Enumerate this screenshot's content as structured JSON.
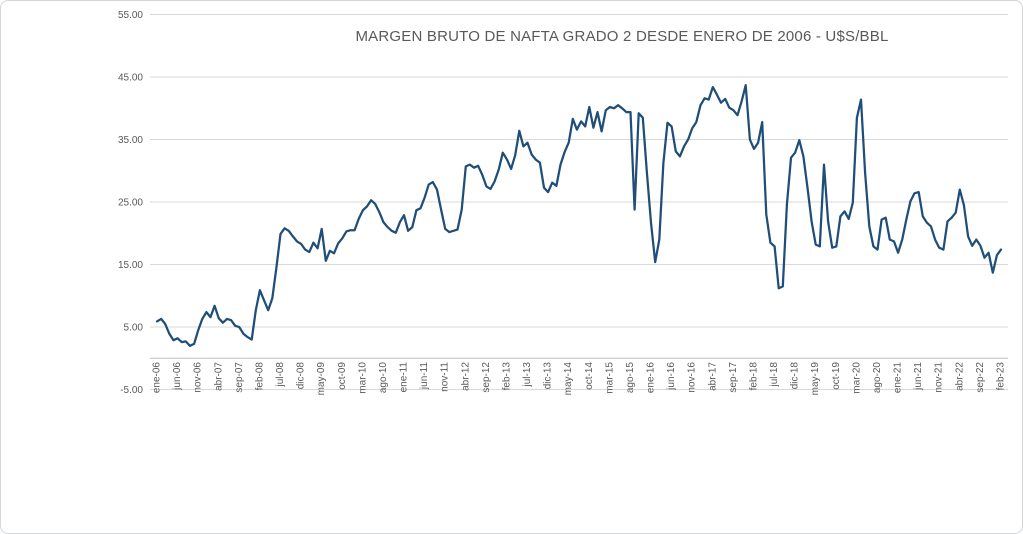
{
  "window": {
    "background_color": "#ffffff",
    "border_color": "#d4d7d9"
  },
  "chart_data": {
    "type": "line",
    "title": "MARGEN BRUTO DE NAFTA GRADO 2 DESDE ENERO DE 2006 - U$S/BBL",
    "xlabel": "",
    "ylabel": "",
    "ylim": [
      -5,
      55
    ],
    "grid": true,
    "legend_position": "none",
    "line_color": "#1f4e79",
    "grid_color": "#d9d9d9",
    "axis_line_color": "#bfbfbf",
    "label_color": "#595959",
    "y_ticks": [
      {
        "value": 55,
        "label": "55.00"
      },
      {
        "value": 45,
        "label": "45.00"
      },
      {
        "value": 35,
        "label": "35.00"
      },
      {
        "value": 25,
        "label": "25.00"
      },
      {
        "value": 15,
        "label": "15.00"
      },
      {
        "value": 5,
        "label": "5.00"
      },
      {
        "value": -5,
        "label": "-5.00"
      }
    ],
    "x_tick_every": 5,
    "x_tick_labels": [
      "ene-06",
      "jun-06",
      "nov-06",
      "abr-07",
      "sep-07",
      "feb-08",
      "jul-08",
      "dic-08",
      "may-09",
      "oct-09",
      "mar-10",
      "ago-10",
      "ene-11",
      "jun-11",
      "nov-11",
      "abr-12",
      "sep-12",
      "feb-13",
      "jul-13",
      "dic-13",
      "may-14",
      "oct-14",
      "mar-15",
      "ago-15",
      "ene-16",
      "jun-16",
      "nov-16",
      "abr-17",
      "sep-17",
      "feb-18",
      "jul-18",
      "dic-18",
      "may-19",
      "oct-19",
      "mar-20",
      "ago-20",
      "ene-21",
      "jun-21",
      "nov-21",
      "abr-22",
      "sep-22",
      "feb-23"
    ],
    "series": [
      {
        "color": "#1f4e79",
        "values": [
          5.9,
          6.3,
          5.5,
          3.9,
          2.9,
          3.2,
          2.6,
          2.7,
          2.0,
          2.3,
          4.5,
          6.3,
          7.4,
          6.6,
          8.4,
          6.4,
          5.7,
          6.3,
          6.1,
          5.2,
          5.0,
          3.9,
          3.4,
          3.0,
          7.7,
          10.9,
          9.3,
          7.7,
          9.6,
          14.5,
          19.9,
          20.8,
          20.4,
          19.5,
          18.7,
          18.3,
          17.4,
          17.0,
          18.5,
          17.6,
          20.7,
          15.6,
          17.2,
          16.8,
          18.4,
          19.2,
          20.3,
          20.5,
          20.5,
          22.3,
          23.7,
          24.3,
          25.3,
          24.7,
          23.4,
          21.8,
          21.0,
          20.4,
          20.1,
          21.8,
          22.9,
          20.4,
          21.0,
          23.7,
          24.0,
          25.7,
          27.8,
          28.2,
          27.0,
          23.8,
          20.7,
          20.2,
          20.4,
          20.6,
          23.8,
          30.7,
          31.0,
          30.5,
          30.8,
          29.4,
          27.5,
          27.1,
          28.3,
          30.2,
          32.9,
          31.8,
          30.3,
          32.5,
          36.4,
          33.9,
          34.5,
          32.6,
          31.8,
          31.3,
          27.3,
          26.6,
          28.1,
          27.6,
          31.0,
          33.0,
          34.5,
          38.3,
          36.6,
          37.9,
          37.1,
          40.2,
          36.9,
          39.4,
          36.3,
          39.7,
          40.2,
          40.0,
          40.5,
          40.0,
          39.4,
          39.4,
          23.8,
          39.2,
          38.5,
          29.7,
          21.7,
          15.4,
          19.0,
          31.3,
          37.7,
          37.1,
          33.1,
          32.3,
          33.9,
          35.0,
          36.8,
          37.8,
          40.5,
          41.6,
          41.4,
          43.4,
          42.2,
          40.9,
          41.5,
          40.1,
          39.7,
          38.9,
          41.1,
          43.7,
          35.0,
          33.5,
          34.5,
          37.8,
          23.0,
          18.5,
          17.9,
          11.2,
          11.5,
          24.6,
          32.1,
          32.9,
          34.9,
          32.3,
          27.3,
          21.9,
          18.2,
          17.9,
          31.0,
          21.9,
          17.7,
          17.9,
          22.7,
          23.5,
          22.3,
          24.9,
          38.5,
          41.4,
          29.7,
          21.1,
          17.9,
          17.4,
          22.2,
          22.5,
          19.0,
          18.7,
          16.9,
          19.0,
          22.2,
          25.1,
          26.4,
          26.6,
          22.7,
          21.7,
          21.1,
          19.0,
          17.7,
          17.4,
          21.9,
          22.5,
          23.3,
          27.0,
          24.5,
          19.5,
          18.0,
          19.0,
          18.0,
          16.1,
          16.9,
          13.7,
          16.5,
          17.4
        ]
      }
    ]
  }
}
